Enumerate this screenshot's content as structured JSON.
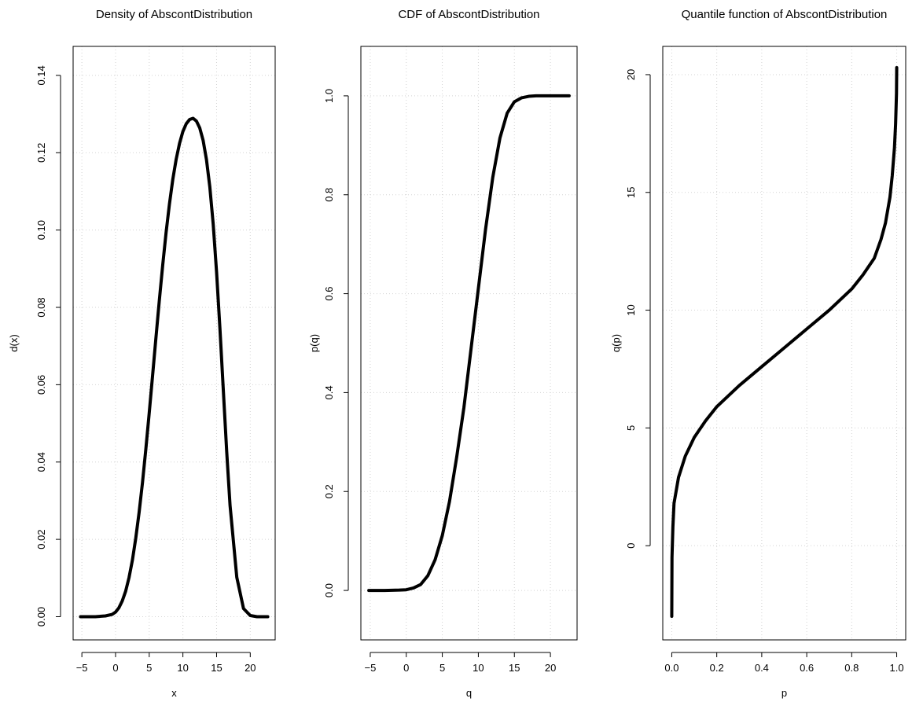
{
  "chart_data": [
    {
      "type": "line",
      "title": "Density of AbscontDistribution",
      "xlabel": "x",
      "ylabel": "d(x)",
      "xlim": [
        -6.3,
        23.7
      ],
      "ylim": [
        -0.006,
        0.1475
      ],
      "xticks": [
        -5,
        0,
        5,
        10,
        15,
        20
      ],
      "xtick_labels": [
        "−5",
        "0",
        "5",
        "10",
        "15",
        "20"
      ],
      "yticks": [
        0,
        0.02,
        0.04,
        0.06,
        0.08,
        0.1,
        0.12,
        0.14
      ],
      "ytick_labels": [
        "0.00",
        "0.02",
        "0.04",
        "0.06",
        "0.08",
        "0.10",
        "0.12",
        "0.14"
      ],
      "grid": true,
      "series": [
        {
          "x": [
            -5.2,
            -3,
            -1.5,
            -0.5,
            0,
            0.5,
            1,
            1.5,
            2,
            2.5,
            3,
            3.5,
            4,
            4.5,
            5,
            5.5,
            6,
            6.5,
            7,
            7.5,
            8,
            8.5,
            9,
            9.5,
            10,
            10.5,
            11,
            11.5,
            12,
            12.5,
            13,
            13.5,
            14,
            14.5,
            15,
            15.5,
            16,
            16.5,
            17,
            18,
            19,
            20,
            21,
            22.6
          ],
          "y": [
            0,
            0,
            0.0002,
            0.0006,
            0.0012,
            0.0023,
            0.0041,
            0.0066,
            0.0101,
            0.0146,
            0.0203,
            0.027,
            0.0347,
            0.0434,
            0.0527,
            0.0624,
            0.0722,
            0.0818,
            0.0909,
            0.0993,
            0.1067,
            0.1131,
            0.1183,
            0.1224,
            0.1255,
            0.1275,
            0.1286,
            0.1289,
            0.1282,
            0.1264,
            0.1232,
            0.1182,
            0.1111,
            0.1015,
            0.0891,
            0.0745,
            0.0586,
            0.0428,
            0.0288,
            0.0102,
            0.0021,
            0.0003,
            0,
            0
          ]
        }
      ]
    },
    {
      "type": "line",
      "title": "CDF of AbscontDistribution",
      "xlabel": "q",
      "ylabel": "p(q)",
      "xlim": [
        -6.3,
        23.7
      ],
      "ylim": [
        -0.1,
        1.1
      ],
      "xticks": [
        -5,
        0,
        5,
        10,
        15,
        20
      ],
      "xtick_labels": [
        "−5",
        "0",
        "5",
        "10",
        "15",
        "20"
      ],
      "yticks": [
        0,
        0.2,
        0.4,
        0.6,
        0.8,
        1.0
      ],
      "ytick_labels": [
        "0.0",
        "0.2",
        "0.4",
        "0.6",
        "0.8",
        "1.0"
      ],
      "grid": true,
      "series": [
        {
          "x": [
            -5.2,
            -3,
            -1,
            0,
            1,
            2,
            3,
            4,
            5,
            6,
            7,
            8,
            9,
            10,
            11,
            12,
            13,
            14,
            15,
            16,
            17,
            18,
            20,
            22.6
          ],
          "y": [
            0,
            0,
            0.0007,
            0.0014,
            0.005,
            0.012,
            0.03,
            0.062,
            0.111,
            0.18,
            0.27,
            0.37,
            0.49,
            0.61,
            0.73,
            0.835,
            0.915,
            0.965,
            0.988,
            0.996,
            0.999,
            1,
            1,
            1
          ]
        }
      ]
    },
    {
      "type": "line",
      "title": "Quantile function of AbscontDistribution",
      "xlabel": "p",
      "ylabel": "q(p)",
      "xlim": [
        -0.04,
        1.04
      ],
      "ylim": [
        -4.0,
        21.2
      ],
      "xticks": [
        0,
        0.2,
        0.4,
        0.6,
        0.8,
        1.0
      ],
      "xtick_labels": [
        "0.0",
        "0.2",
        "0.4",
        "0.6",
        "0.8",
        "1.0"
      ],
      "yticks": [
        0,
        5,
        10,
        15,
        20
      ],
      "ytick_labels": [
        "0",
        "5",
        "10",
        "15",
        "20"
      ],
      "grid": true,
      "series": [
        {
          "x": [
            0,
            0.001,
            0.005,
            0.01,
            0.03,
            0.06,
            0.1,
            0.15,
            0.2,
            0.3,
            0.4,
            0.5,
            0.6,
            0.7,
            0.8,
            0.85,
            0.9,
            0.93,
            0.95,
            0.97,
            0.98,
            0.99,
            0.995,
            0.999,
            1
          ],
          "y": [
            -3,
            -0.5,
            0.8,
            1.8,
            2.9,
            3.8,
            4.6,
            5.3,
            5.9,
            6.8,
            7.6,
            8.4,
            9.2,
            10.0,
            10.9,
            11.5,
            12.2,
            13.0,
            13.7,
            14.8,
            15.7,
            16.9,
            17.9,
            19.2,
            20.3
          ]
        }
      ]
    }
  ]
}
